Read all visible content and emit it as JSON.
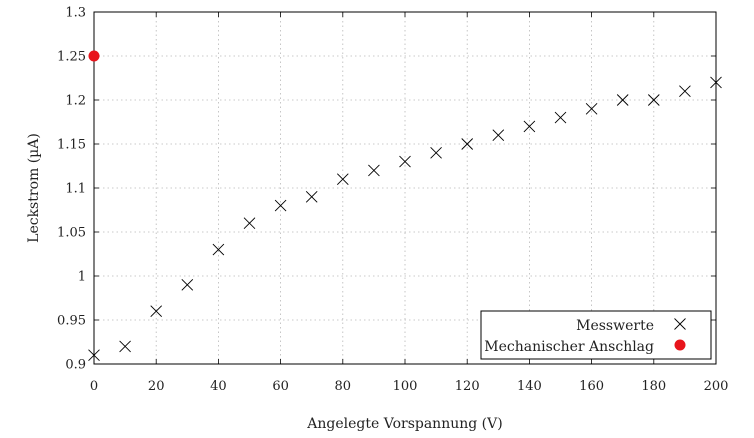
{
  "chart_data": {
    "type": "scatter",
    "title": "",
    "xlabel": "Angelegte Vorspannung (V)",
    "ylabel": "Leckstrom (µA)",
    "xlim": [
      0,
      200
    ],
    "ylim": [
      0.9,
      1.3
    ],
    "xticks": [
      0,
      20,
      40,
      60,
      80,
      100,
      120,
      140,
      160,
      180,
      200
    ],
    "yticks": [
      0.9,
      0.95,
      1,
      1.05,
      1.1,
      1.15,
      1.2,
      1.25,
      1.3
    ],
    "xtick_labels": [
      "0",
      "20",
      "40",
      "60",
      "80",
      "100",
      "120",
      "140",
      "160",
      "180",
      "200"
    ],
    "ytick_labels": [
      "0.9",
      "0.95",
      "1",
      "1.05",
      "1.1",
      "1.15",
      "1.2",
      "1.25",
      "1.3"
    ],
    "grid": true,
    "legend_position": "bottom-right",
    "series": [
      {
        "name": "Messwerte",
        "marker": "cross",
        "color": "#000000",
        "x": [
          0,
          10,
          20,
          30,
          40,
          50,
          60,
          70,
          80,
          90,
          100,
          110,
          120,
          130,
          140,
          150,
          160,
          170,
          180,
          190,
          200
        ],
        "y": [
          0.91,
          0.92,
          0.96,
          0.99,
          1.03,
          1.06,
          1.08,
          1.09,
          1.11,
          1.12,
          1.13,
          1.14,
          1.15,
          1.16,
          1.17,
          1.18,
          1.19,
          1.2,
          1.2,
          1.21,
          1.22
        ]
      },
      {
        "name": "Mechanischer Anschlag",
        "marker": "circle",
        "color": "#e8141b",
        "x": [
          0
        ],
        "y": [
          1.25
        ]
      }
    ]
  }
}
